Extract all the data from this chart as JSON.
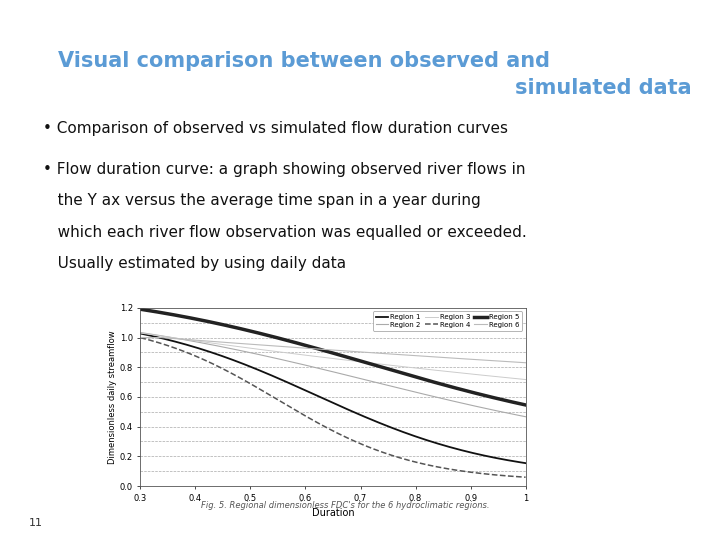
{
  "title_line1": "Visual comparison between observed and",
  "title_line2": "simulated data",
  "title_color": "#5B9BD5",
  "bullet1": "• Comparison of observed vs simulated flow duration curves",
  "bullet2_l1": "• Flow duration curve: a graph showing observed river flows in",
  "bullet2_l2": "   the Y ax versus the average time span in a year during",
  "bullet2_l3": "   which each river flow observation was equalled or exceeded.",
  "bullet2_l4": "   Usually estimated by using daily data",
  "slide_number": "11",
  "fig_caption": "Fig. 5. Regional dimensionless FDC's for the 6 hydroclimatic regions.",
  "slide_background": "#ffffff",
  "xlabel": "Duration",
  "ylabel": "Dimensionless daily streamflow",
  "xlim": [
    0.3,
    1.0
  ],
  "ylim": [
    0.0,
    1.2
  ],
  "xtick_labels": [
    "0.3",
    "0.4",
    "0.5",
    "0.6",
    "0.7",
    "0.8",
    "0.9",
    "1"
  ],
  "ytick_labels": [
    "0.0",
    "0.2",
    "0.4",
    "0.6",
    "0.8",
    "1.0",
    "1.2"
  ],
  "legend_labels": [
    "Region 1",
    "Region 2",
    "Region 3",
    "Region 4",
    "Region 5",
    "Region 6"
  ],
  "curve_colors": [
    "#111111",
    "#aaaaaa",
    "#cccccc",
    "#555555",
    "#222222",
    "#bbbbbb"
  ],
  "curve_styles": [
    "-",
    "-",
    "-",
    "--",
    "-",
    "-"
  ],
  "curve_widths": [
    1.3,
    0.8,
    0.7,
    1.1,
    2.5,
    0.8
  ],
  "title_fontsize": 15,
  "body_fontsize": 11,
  "text_color": "#111111"
}
